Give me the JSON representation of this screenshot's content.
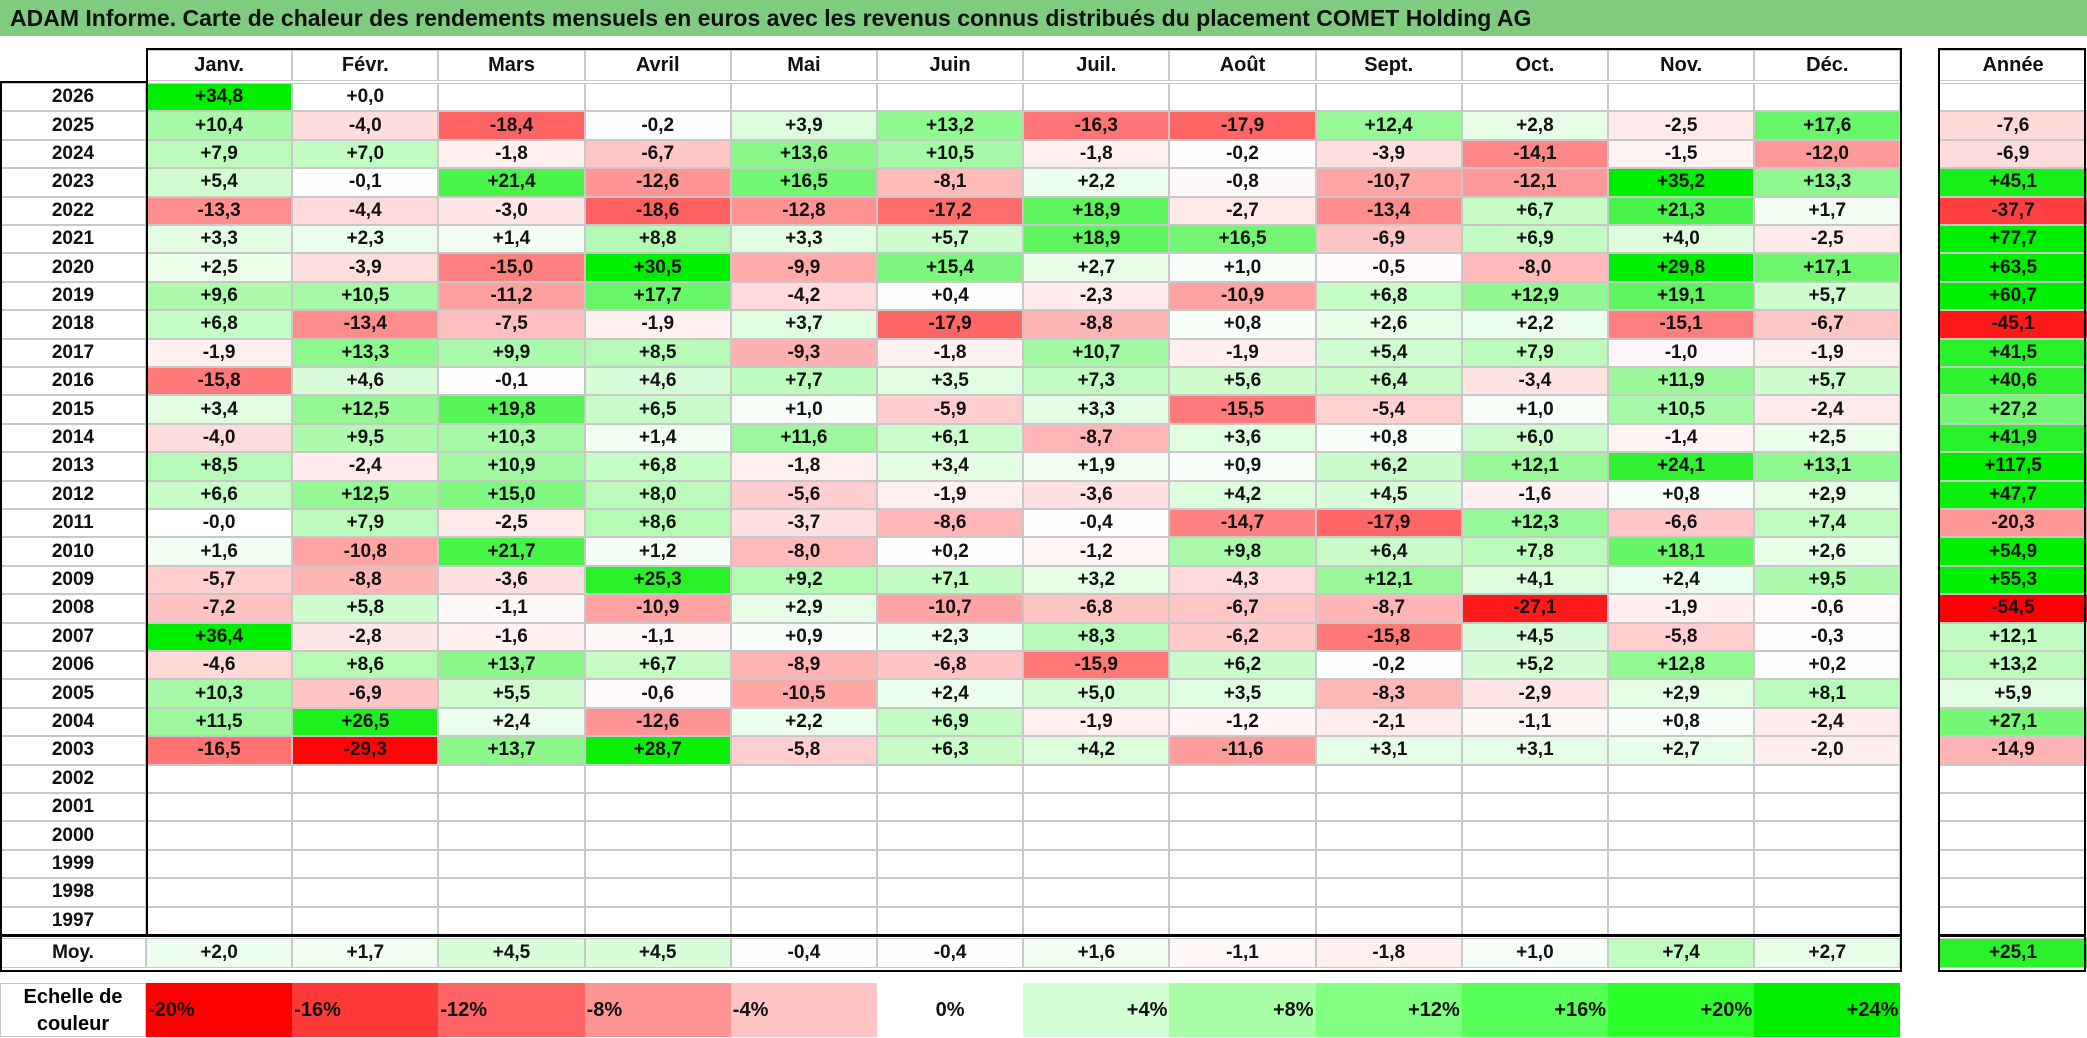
{
  "title": "ADAM Informe. Carte de chaleur des rendements mensuels en euros avec les revenus connus distribués du placement COMET Holding AG",
  "chart_data": {
    "type": "heatmap",
    "title": "ADAM Informe. Carte de chaleur des rendements mensuels en euros avec les revenus connus distribués du placement COMET Holding AG",
    "months": [
      "Janv.",
      "Févr.",
      "Mars",
      "Avril",
      "Mai",
      "Juin",
      "Juil.",
      "Août",
      "Sept.",
      "Oct.",
      "Nov.",
      "Déc."
    ],
    "annual_label": "Année",
    "rows": [
      {
        "year": "2026",
        "values": [
          "+34,8",
          "+0,0",
          "",
          "",
          "",
          "",
          "",
          "",
          "",
          "",
          "",
          ""
        ],
        "annual": ""
      },
      {
        "year": "2025",
        "values": [
          "+10,4",
          "-4,0",
          "-18,4",
          "-0,2",
          "+3,9",
          "+13,2",
          "-16,3",
          "-17,9",
          "+12,4",
          "+2,8",
          "-2,5",
          "+17,6"
        ],
        "annual": "-7,6"
      },
      {
        "year": "2024",
        "values": [
          "+7,9",
          "+7,0",
          "-1,8",
          "-6,7",
          "+13,6",
          "+10,5",
          "-1,8",
          "-0,2",
          "-3,9",
          "-14,1",
          "-1,5",
          "-12,0"
        ],
        "annual": "-6,9"
      },
      {
        "year": "2023",
        "values": [
          "+5,4",
          "-0,1",
          "+21,4",
          "-12,6",
          "+16,5",
          "-8,1",
          "+2,2",
          "-0,8",
          "-10,7",
          "-12,1",
          "+35,2",
          "+13,3"
        ],
        "annual": "+45,1"
      },
      {
        "year": "2022",
        "values": [
          "-13,3",
          "-4,4",
          "-3,0",
          "-18,6",
          "-12,8",
          "-17,2",
          "+18,9",
          "-2,7",
          "-13,4",
          "+6,7",
          "+21,3",
          "+1,7"
        ],
        "annual": "-37,7"
      },
      {
        "year": "2021",
        "values": [
          "+3,3",
          "+2,3",
          "+1,4",
          "+8,8",
          "+3,3",
          "+5,7",
          "+18,9",
          "+16,5",
          "-6,9",
          "+6,9",
          "+4,0",
          "-2,5"
        ],
        "annual": "+77,7"
      },
      {
        "year": "2020",
        "values": [
          "+2,5",
          "-3,9",
          "-15,0",
          "+30,5",
          "-9,9",
          "+15,4",
          "+2,7",
          "+1,0",
          "-0,5",
          "-8,0",
          "+29,8",
          "+17,1"
        ],
        "annual": "+63,5"
      },
      {
        "year": "2019",
        "values": [
          "+9,6",
          "+10,5",
          "-11,2",
          "+17,7",
          "-4,2",
          "+0,4",
          "-2,3",
          "-10,9",
          "+6,8",
          "+12,9",
          "+19,1",
          "+5,7"
        ],
        "annual": "+60,7"
      },
      {
        "year": "2018",
        "values": [
          "+6,8",
          "-13,4",
          "-7,5",
          "-1,9",
          "+3,7",
          "-17,9",
          "-8,8",
          "+0,8",
          "+2,6",
          "+2,2",
          "-15,1",
          "-6,7"
        ],
        "annual": "-45,1"
      },
      {
        "year": "2017",
        "values": [
          "-1,9",
          "+13,3",
          "+9,9",
          "+8,5",
          "-9,3",
          "-1,8",
          "+10,7",
          "-1,9",
          "+5,4",
          "+7,9",
          "-1,0",
          "-1,9"
        ],
        "annual": "+41,5"
      },
      {
        "year": "2016",
        "values": [
          "-15,8",
          "+4,6",
          "-0,1",
          "+4,6",
          "+7,7",
          "+3,5",
          "+7,3",
          "+5,6",
          "+6,4",
          "-3,4",
          "+11,9",
          "+5,7"
        ],
        "annual": "+40,6"
      },
      {
        "year": "2015",
        "values": [
          "+3,4",
          "+12,5",
          "+19,8",
          "+6,5",
          "+1,0",
          "-5,9",
          "+3,3",
          "-15,5",
          "-5,4",
          "+1,0",
          "+10,5",
          "-2,4"
        ],
        "annual": "+27,2"
      },
      {
        "year": "2014",
        "values": [
          "-4,0",
          "+9,5",
          "+10,3",
          "+1,4",
          "+11,6",
          "+6,1",
          "-8,7",
          "+3,6",
          "+0,8",
          "+6,0",
          "-1,4",
          "+2,5"
        ],
        "annual": "+41,9"
      },
      {
        "year": "2013",
        "values": [
          "+8,5",
          "-2,4",
          "+10,9",
          "+6,8",
          "-1,8",
          "+3,4",
          "+1,9",
          "+0,9",
          "+6,2",
          "+12,1",
          "+24,1",
          "+13,1"
        ],
        "annual": "+117,5"
      },
      {
        "year": "2012",
        "values": [
          "+6,6",
          "+12,5",
          "+15,0",
          "+8,0",
          "-5,6",
          "-1,9",
          "-3,6",
          "+4,2",
          "+4,5",
          "-1,6",
          "+0,8",
          "+2,9"
        ],
        "annual": "+47,7"
      },
      {
        "year": "2011",
        "values": [
          "-0,0",
          "+7,9",
          "-2,5",
          "+8,6",
          "-3,7",
          "-8,6",
          "-0,4",
          "-14,7",
          "-17,9",
          "+12,3",
          "-6,6",
          "+7,4"
        ],
        "annual": "-20,3"
      },
      {
        "year": "2010",
        "values": [
          "+1,6",
          "-10,8",
          "+21,7",
          "+1,2",
          "-8,0",
          "+0,2",
          "-1,2",
          "+9,8",
          "+6,4",
          "+7,8",
          "+18,1",
          "+2,6"
        ],
        "annual": "+54,9"
      },
      {
        "year": "2009",
        "values": [
          "-5,7",
          "-8,8",
          "-3,6",
          "+25,3",
          "+9,2",
          "+7,1",
          "+3,2",
          "-4,3",
          "+12,1",
          "+4,1",
          "+2,4",
          "+9,5"
        ],
        "annual": "+55,3"
      },
      {
        "year": "2008",
        "values": [
          "-7,2",
          "+5,8",
          "-1,1",
          "-10,9",
          "+2,9",
          "-10,7",
          "-6,8",
          "-6,7",
          "-8,7",
          "-27,1",
          "-1,9",
          "-0,6"
        ],
        "annual": "-54,5"
      },
      {
        "year": "2007",
        "values": [
          "+36,4",
          "-2,8",
          "-1,6",
          "-1,1",
          "+0,9",
          "+2,3",
          "+8,3",
          "-6,2",
          "-15,8",
          "+4,5",
          "-5,8",
          "-0,3"
        ],
        "annual": "+12,1"
      },
      {
        "year": "2006",
        "values": [
          "-4,6",
          "+8,6",
          "+13,7",
          "+6,7",
          "-8,9",
          "-6,8",
          "-15,9",
          "+6,2",
          "-0,2",
          "+5,2",
          "+12,8",
          "+0,2"
        ],
        "annual": "+13,2"
      },
      {
        "year": "2005",
        "values": [
          "+10,3",
          "-6,9",
          "+5,5",
          "-0,6",
          "-10,5",
          "+2,4",
          "+5,0",
          "+3,5",
          "-8,3",
          "-2,9",
          "+2,9",
          "+8,1"
        ],
        "annual": "+5,9"
      },
      {
        "year": "2004",
        "values": [
          "+11,5",
          "+26,5",
          "+2,4",
          "-12,6",
          "+2,2",
          "+6,9",
          "-1,9",
          "-1,2",
          "-2,1",
          "-1,1",
          "+0,8",
          "-2,4"
        ],
        "annual": "+27,1"
      },
      {
        "year": "2003",
        "values": [
          "-16,5",
          "-29,3",
          "+13,7",
          "+28,7",
          "-5,8",
          "+6,3",
          "+4,2",
          "-11,6",
          "+3,1",
          "+3,1",
          "+2,7",
          "-2,0"
        ],
        "annual": "-14,9"
      },
      {
        "year": "2002",
        "values": [
          "",
          "",
          "",
          "",
          "",
          "",
          "",
          "",
          "",
          "",
          "",
          ""
        ],
        "annual": ""
      },
      {
        "year": "2001",
        "values": [
          "",
          "",
          "",
          "",
          "",
          "",
          "",
          "",
          "",
          "",
          "",
          ""
        ],
        "annual": ""
      },
      {
        "year": "2000",
        "values": [
          "",
          "",
          "",
          "",
          "",
          "",
          "",
          "",
          "",
          "",
          "",
          ""
        ],
        "annual": ""
      },
      {
        "year": "1999",
        "values": [
          "",
          "",
          "",
          "",
          "",
          "",
          "",
          "",
          "",
          "",
          "",
          ""
        ],
        "annual": ""
      },
      {
        "year": "1998",
        "values": [
          "",
          "",
          "",
          "",
          "",
          "",
          "",
          "",
          "",
          "",
          "",
          ""
        ],
        "annual": ""
      },
      {
        "year": "1997",
        "values": [
          "",
          "",
          "",
          "",
          "",
          "",
          "",
          "",
          "",
          "",
          "",
          ""
        ],
        "annual": ""
      }
    ],
    "average": {
      "label": "Moy.",
      "values": [
        "+2,0",
        "+1,7",
        "+4,5",
        "+4,5",
        "-0,4",
        "-0,4",
        "+1,6",
        "-1,1",
        "-1,8",
        "+1,0",
        "+7,4",
        "+2,7"
      ],
      "annual": "+25,1"
    },
    "scale": {
      "label_line1": "Echelle de",
      "label_line2": "couleur",
      "steps": [
        "-20%",
        "-16%",
        "-12%",
        "-8%",
        "-4%",
        "0%",
        "+4%",
        "+8%",
        "+12%",
        "+16%",
        "+20%",
        "+24%"
      ],
      "colors": [
        "#ff0000",
        "#ff3838",
        "#ff6464",
        "#ff9494",
        "#ffc4c4",
        "#ffffff",
        "#d4ffd4",
        "#a8ffa8",
        "#80ff80",
        "#58ff58",
        "#2cff2c",
        "#00ee00"
      ]
    },
    "colors": {
      "neg_max": "#ff0000",
      "zero": "#ffffff",
      "pos_max": "#00ff00",
      "title_bg": "#7fcb7f"
    }
  }
}
